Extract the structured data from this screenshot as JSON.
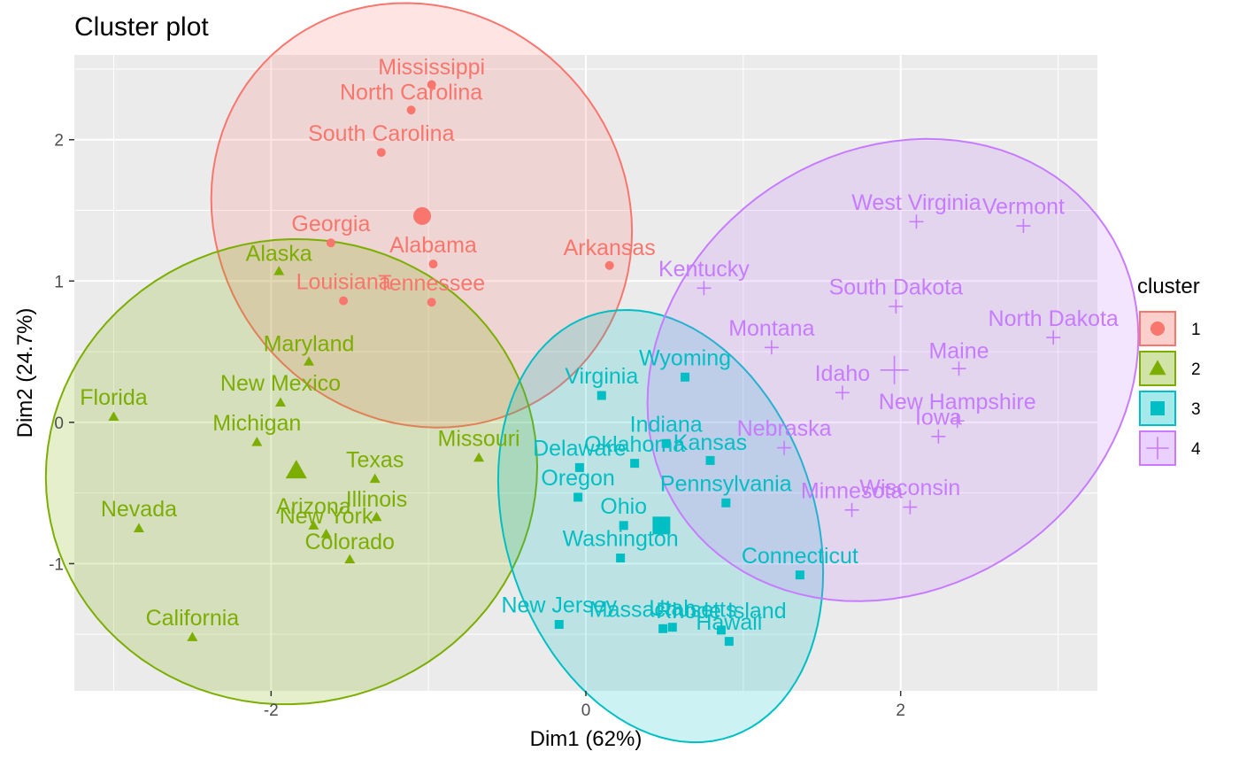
{
  "chart_data": {
    "type": "scatter",
    "title": "Cluster plot",
    "xlabel": "Dim1 (62%)",
    "ylabel": "Dim2 (24.7%)",
    "xlim": [
      -3.25,
      3.25
    ],
    "ylim": [
      -1.9,
      2.6
    ],
    "xticks": [
      -2,
      0,
      2
    ],
    "xtick_labels": [
      "-2",
      "0",
      "2"
    ],
    "yticks": [
      -1,
      0,
      1,
      2
    ],
    "ytick_labels": [
      "-1",
      "0",
      "1",
      "2"
    ],
    "grid": true,
    "legend": {
      "title": "cluster",
      "position": "right",
      "entries": [
        "1",
        "2",
        "3",
        "4"
      ]
    },
    "clusters": [
      {
        "id": "1",
        "color": "#F8766D",
        "shape": "circle",
        "centroid": [
          -1.04,
          1.46
        ],
        "points": [
          {
            "label": "Mississippi",
            "x": -0.98,
            "y": 2.39,
            "lx": -0.98,
            "ly": 2.52
          },
          {
            "label": "North Carolina",
            "x": -1.11,
            "y": 2.21,
            "lx": -1.11,
            "ly": 2.34
          },
          {
            "label": "South Carolina",
            "x": -1.3,
            "y": 1.91,
            "lx": -1.3,
            "ly": 2.05
          },
          {
            "label": "Georgia",
            "x": -1.62,
            "y": 1.27,
            "lx": -1.62,
            "ly": 1.41
          },
          {
            "label": "Alabama",
            "x": -0.97,
            "y": 1.12,
            "lx": -0.97,
            "ly": 1.26
          },
          {
            "label": "Arkansas",
            "x": 0.15,
            "y": 1.11,
            "lx": 0.15,
            "ly": 1.24
          },
          {
            "label": "Louisiana",
            "x": -1.54,
            "y": 0.86,
            "lx": -1.54,
            "ly": 1.0
          },
          {
            "label": "Tennessee",
            "x": -0.98,
            "y": 0.85,
            "lx": -0.98,
            "ly": 0.99
          }
        ]
      },
      {
        "id": "2",
        "color": "#7CAE00",
        "shape": "triangle",
        "centroid": [
          -1.84,
          -0.34
        ],
        "points": [
          {
            "label": "Alaska",
            "x": -1.95,
            "y": 1.07,
            "lx": -1.95,
            "ly": 1.2
          },
          {
            "label": "Maryland",
            "x": -1.76,
            "y": 0.43,
            "lx": -1.76,
            "ly": 0.56
          },
          {
            "label": "New Mexico",
            "x": -1.94,
            "y": 0.14,
            "lx": -1.94,
            "ly": 0.28
          },
          {
            "label": "Florida",
            "x": -3.0,
            "y": 0.04,
            "lx": -3.0,
            "ly": 0.18
          },
          {
            "label": "Michigan",
            "x": -2.09,
            "y": -0.14,
            "lx": -2.09,
            "ly": 0.0
          },
          {
            "label": "Missouri",
            "x": -0.68,
            "y": -0.25,
            "lx": -0.68,
            "ly": -0.11
          },
          {
            "label": "Texas",
            "x": -1.34,
            "y": -0.4,
            "lx": -1.34,
            "ly": -0.26
          },
          {
            "label": "Illinois",
            "x": -1.33,
            "y": -0.67,
            "lx": -1.33,
            "ly": -0.54
          },
          {
            "label": "Arizona",
            "x": -1.73,
            "y": -0.73,
            "lx": -1.73,
            "ly": -0.59
          },
          {
            "label": "New York",
            "x": -1.65,
            "y": -0.79,
            "lx": -1.65,
            "ly": -0.66
          },
          {
            "label": "Colorado",
            "x": -1.5,
            "y": -0.97,
            "lx": -1.5,
            "ly": -0.84
          },
          {
            "label": "Nevada",
            "x": -2.84,
            "y": -0.75,
            "lx": -2.84,
            "ly": -0.61
          },
          {
            "label": "California",
            "x": -2.5,
            "y": -1.52,
            "lx": -2.5,
            "ly": -1.38
          }
        ]
      },
      {
        "id": "3",
        "color": "#00BFC4",
        "shape": "square",
        "centroid": [
          0.48,
          -0.73
        ],
        "points": [
          {
            "label": "Wyoming",
            "x": 0.63,
            "y": 0.32,
            "lx": 0.63,
            "ly": 0.46
          },
          {
            "label": "Virginia",
            "x": 0.1,
            "y": 0.19,
            "lx": 0.1,
            "ly": 0.33
          },
          {
            "label": "Indiana",
            "x": 0.51,
            "y": -0.15,
            "lx": 0.51,
            "ly": -0.01
          },
          {
            "label": "Kansas",
            "x": 0.79,
            "y": -0.27,
            "lx": 0.79,
            "ly": -0.14
          },
          {
            "label": "Oklahoma",
            "x": 0.31,
            "y": -0.29,
            "lx": 0.31,
            "ly": -0.15
          },
          {
            "label": "Delaware",
            "x": -0.04,
            "y": -0.32,
            "lx": -0.04,
            "ly": -0.18
          },
          {
            "label": "Oregon",
            "x": -0.05,
            "y": -0.53,
            "lx": -0.05,
            "ly": -0.39
          },
          {
            "label": "Pennsylvania",
            "x": 0.89,
            "y": -0.57,
            "lx": 0.89,
            "ly": -0.43
          },
          {
            "label": "Ohio",
            "x": 0.24,
            "y": -0.73,
            "lx": 0.24,
            "ly": -0.59
          },
          {
            "label": "Washington",
            "x": 0.22,
            "y": -0.96,
            "lx": 0.22,
            "ly": -0.82
          },
          {
            "label": "Connecticut",
            "x": 1.36,
            "y": -1.08,
            "lx": 1.36,
            "ly": -0.94
          },
          {
            "label": "New Jersey",
            "x": -0.17,
            "y": -1.43,
            "lx": -0.17,
            "ly": -1.29
          },
          {
            "label": "Massachusetts",
            "x": 0.49,
            "y": -1.46,
            "lx": 0.49,
            "ly": -1.32
          },
          {
            "label": "Utah",
            "x": 0.55,
            "y": -1.45,
            "lx": 0.55,
            "ly": -1.31
          },
          {
            "label": "Rhode Island",
            "x": 0.86,
            "y": -1.47,
            "lx": 0.86,
            "ly": -1.33
          },
          {
            "label": "Hawaii",
            "x": 0.91,
            "y": -1.55,
            "lx": 0.91,
            "ly": -1.41
          }
        ]
      },
      {
        "id": "4",
        "color": "#C77CFF",
        "shape": "plus",
        "centroid": [
          1.96,
          0.37
        ],
        "points": [
          {
            "label": "West Virginia",
            "x": 2.1,
            "y": 1.42,
            "lx": 2.1,
            "ly": 1.56
          },
          {
            "label": "Vermont",
            "x": 2.78,
            "y": 1.39,
            "lx": 2.78,
            "ly": 1.53
          },
          {
            "label": "Kentucky",
            "x": 0.75,
            "y": 0.95,
            "lx": 0.75,
            "ly": 1.09
          },
          {
            "label": "South Dakota",
            "x": 1.97,
            "y": 0.82,
            "lx": 1.97,
            "ly": 0.96
          },
          {
            "label": "North Dakota",
            "x": 2.97,
            "y": 0.6,
            "lx": 2.97,
            "ly": 0.74
          },
          {
            "label": "Montana",
            "x": 1.18,
            "y": 0.53,
            "lx": 1.18,
            "ly": 0.67
          },
          {
            "label": "Maine",
            "x": 2.37,
            "y": 0.38,
            "lx": 2.37,
            "ly": 0.51
          },
          {
            "label": "Idaho",
            "x": 1.63,
            "y": 0.21,
            "lx": 1.63,
            "ly": 0.35
          },
          {
            "label": "New Hampshire",
            "x": 2.36,
            "y": 0.01,
            "lx": 2.36,
            "ly": 0.15
          },
          {
            "label": "Iowa",
            "x": 2.24,
            "y": -0.1,
            "lx": 2.24,
            "ly": 0.04
          },
          {
            "label": "Nebraska",
            "x": 1.26,
            "y": -0.18,
            "lx": 1.26,
            "ly": -0.04
          },
          {
            "label": "Wisconsin",
            "x": 2.06,
            "y": -0.6,
            "lx": 2.06,
            "ly": -0.46
          },
          {
            "label": "Minnesota",
            "x": 1.69,
            "y": -0.62,
            "lx": 1.69,
            "ly": -0.48
          }
        ]
      }
    ]
  }
}
